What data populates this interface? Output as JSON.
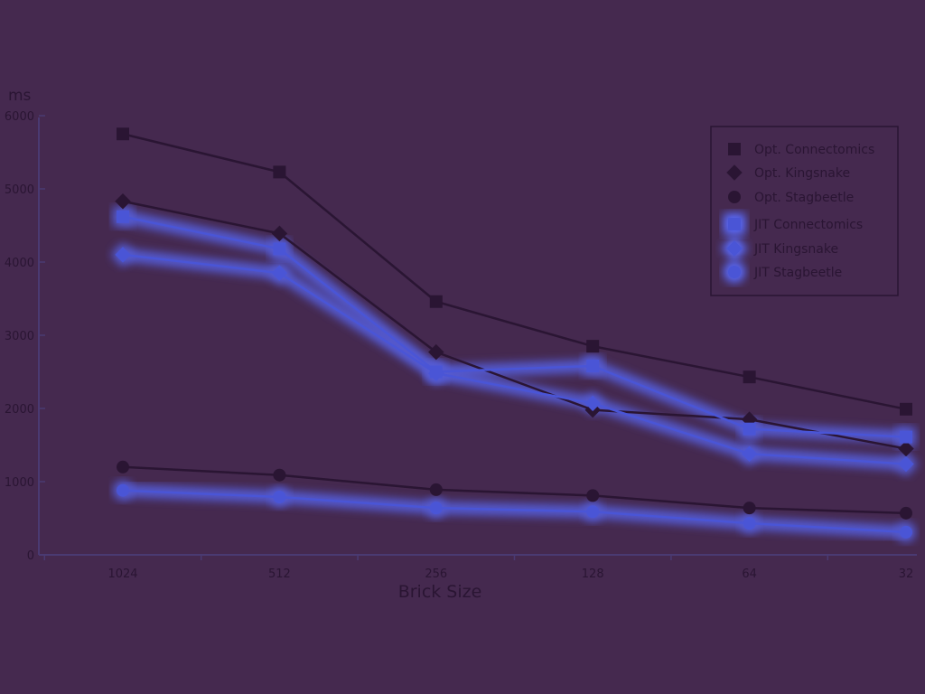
{
  "chart_data": {
    "type": "line",
    "title": "",
    "xlabel": "Brick Size",
    "ylabel": "ms",
    "categories": [
      "1024",
      "512",
      "256",
      "128",
      "64",
      "32"
    ],
    "ylim": [
      0,
      6000
    ],
    "yticks": [
      0,
      1000,
      2000,
      3000,
      4000,
      5000,
      6000
    ],
    "legend": "top-right",
    "grid": false,
    "series": [
      {
        "name": "Opt. Connectomics",
        "marker": "square",
        "color": "#2a1533",
        "highlight": false,
        "values": [
          5750,
          5230,
          3460,
          2850,
          2430,
          1990
        ]
      },
      {
        "name": "Opt. Kingsnake",
        "marker": "diamond",
        "color": "#2a1533",
        "highlight": false,
        "values": [
          4830,
          4390,
          2770,
          1980,
          1850,
          1450
        ]
      },
      {
        "name": "Opt. Stagbeetle",
        "marker": "circle",
        "color": "#2a1533",
        "highlight": false,
        "values": [
          1200,
          1090,
          890,
          810,
          640,
          570
        ]
      },
      {
        "name": "JIT Connectomics",
        "marker": "square",
        "color": "#4a55d6",
        "highlight": true,
        "values": [
          4620,
          4180,
          2500,
          2580,
          1720,
          1610
        ]
      },
      {
        "name": "JIT Kingsnake",
        "marker": "diamond",
        "color": "#4a55d6",
        "highlight": true,
        "values": [
          4100,
          3850,
          2480,
          2070,
          1380,
          1240
        ]
      },
      {
        "name": "JIT Stagbeetle",
        "marker": "circle",
        "color": "#4a55d6",
        "highlight": true,
        "values": [
          880,
          790,
          640,
          590,
          430,
          310
        ]
      }
    ]
  }
}
